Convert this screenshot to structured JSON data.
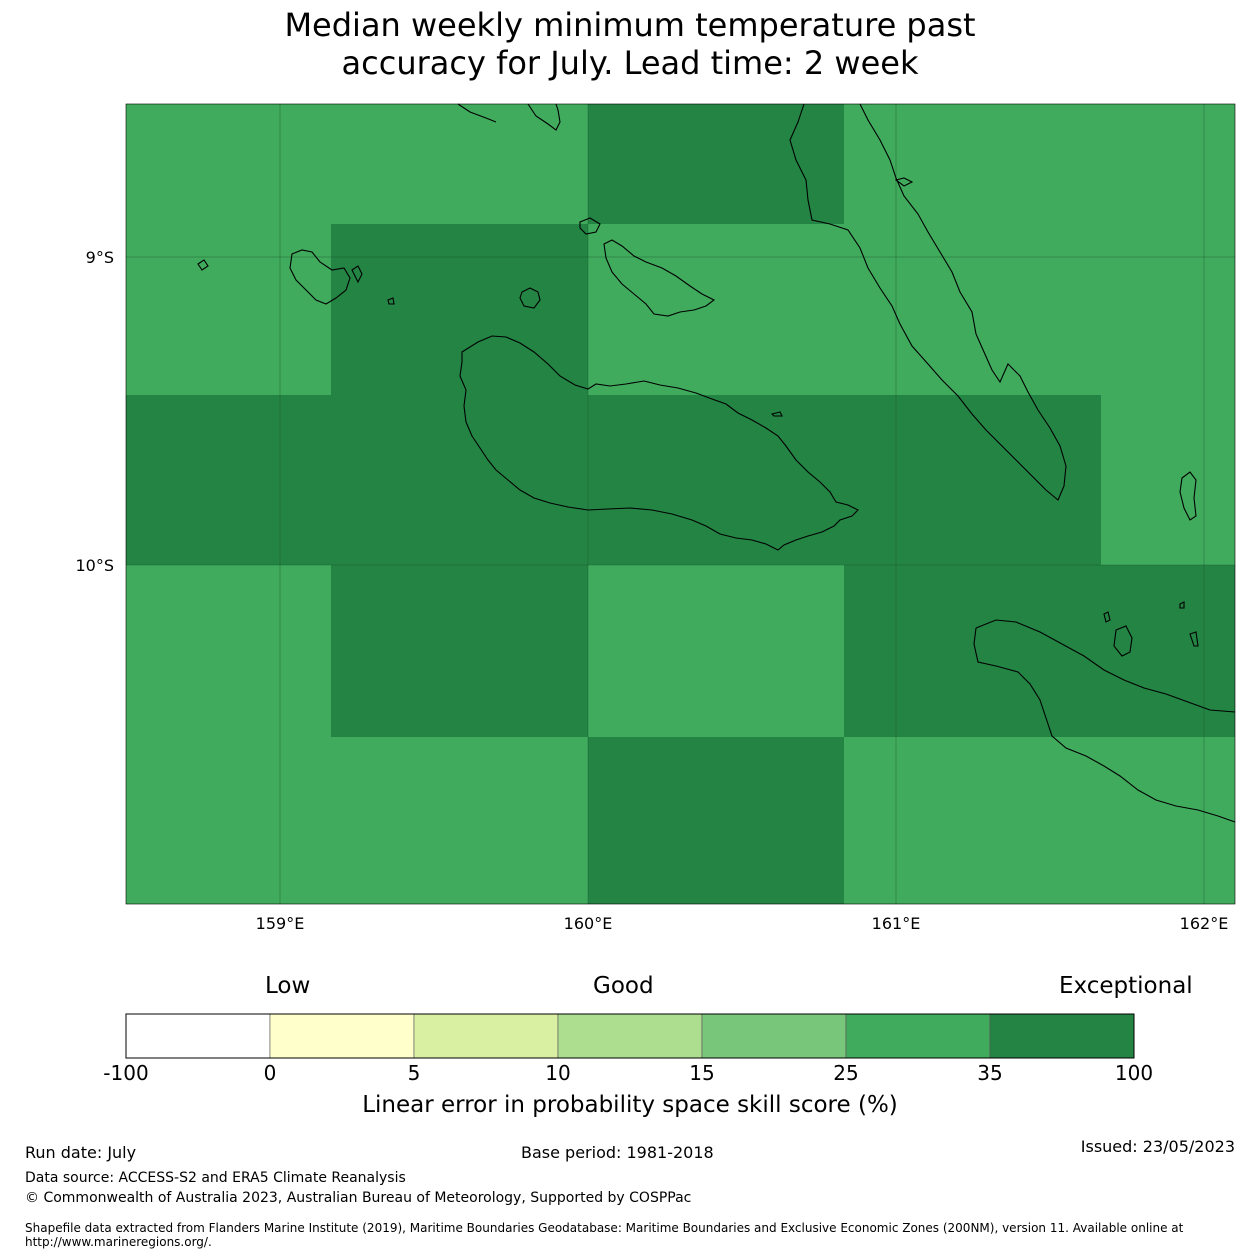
{
  "title": {
    "line1": "Median weekly minimum temperature past",
    "line2": "accuracy for July. Lead time: 2 week"
  },
  "map": {
    "lon_ticks": [
      "159°E",
      "160°E",
      "161°E",
      "162°E"
    ],
    "lat_ticks": [
      "9°S",
      "10°S"
    ],
    "extent": {
      "lon": [
        158.5,
        162.1
      ],
      "lat": [
        -11.1,
        -8.5
      ]
    },
    "colors": {
      "good_green": "#41ab5d",
      "exceptional_green": "#238443"
    },
    "cells_category": [
      [
        "25-35",
        "25-35",
        "35-100",
        "25-35",
        "25-35"
      ],
      [
        "25-35",
        "35-100",
        "25-35",
        "25-35",
        "25-35"
      ],
      [
        "35-100",
        "35-100",
        "35-100",
        "35-100",
        "25-35"
      ],
      [
        "25-35",
        "35-100",
        "25-35",
        "35-100",
        "35-100"
      ],
      [
        "25-35",
        "25-35",
        "35-100",
        "25-35",
        "25-35"
      ]
    ]
  },
  "colorbar": {
    "quality_labels": {
      "low": "Low",
      "good": "Good",
      "exceptional": "Exceptional"
    },
    "ticks": [
      "-100",
      "0",
      "5",
      "10",
      "15",
      "25",
      "35",
      "100"
    ],
    "colors": [
      "#ffffff",
      "#ffffcc",
      "#d9f0a3",
      "#addd8e",
      "#78c679",
      "#41ab5d",
      "#238443"
    ],
    "label": "Linear error in probability space skill score (%)"
  },
  "footer": {
    "run_date": "Run date: July",
    "base_period": "Base period: 1981-2018",
    "issued": "Issued: 23/05/2023",
    "data_source": "Data source: ACCESS-S2 and ERA5 Climate Reanalysis",
    "copyright": "© Commonwealth of Australia 2023, Australian Bureau of Meteorology, Supported by COSPPac",
    "shapefile": "Shapefile data extracted from Flanders Marine Institute (2019), Maritime Boundaries Geodatabase: Maritime Boundaries and Exclusive Economic Zones (200NM), version 11. Available online at http://www.marineregions.org/."
  }
}
